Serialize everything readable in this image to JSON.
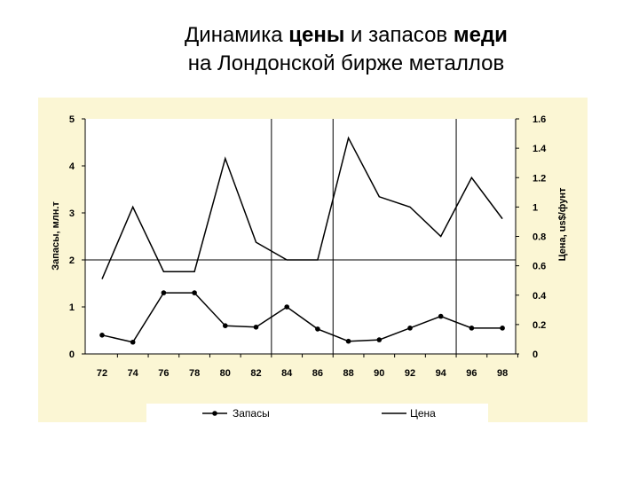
{
  "title": {
    "line1_a": "Динамика ",
    "line1_b": "цены",
    "line1_c": " и запасов ",
    "line1_d": "меди",
    "line2": "на Лондонской бирже металлов"
  },
  "chart_data": {
    "type": "line",
    "x": [
      "72",
      "74",
      "76",
      "78",
      "80",
      "82",
      "84",
      "86",
      "88",
      "90",
      "92",
      "94",
      "96",
      "98"
    ],
    "series": [
      {
        "name": "Запасы",
        "axis": "left",
        "marker": "circle",
        "values": [
          0.4,
          0.25,
          1.3,
          1.3,
          0.6,
          0.57,
          1.0,
          0.53,
          0.27,
          0.3,
          0.55,
          0.8,
          0.55,
          0.55
        ]
      },
      {
        "name": "Цена",
        "axis": "right",
        "marker": "none",
        "values": [
          0.51,
          1.0,
          0.56,
          0.56,
          1.33,
          0.76,
          0.64,
          0.64,
          1.47,
          1.07,
          1.0,
          0.8,
          1.2,
          0.92
        ]
      }
    ],
    "ylabel_left": "Запасы, млн.т",
    "ylabel_right": "Цена, us$/фунт",
    "yticks_left": [
      "0",
      "1",
      "2",
      "3",
      "4",
      "5"
    ],
    "yticks_right": [
      "0",
      "0.2",
      "0.4",
      "0.6",
      "0.8",
      "1",
      "1.2",
      "1.4",
      "1.6"
    ],
    "ylim_left": [
      0,
      5
    ],
    "ylim_right": [
      0,
      1.6
    ],
    "gridlines": {
      "horizontal_left": [
        2
      ],
      "vertical_x": [
        "82",
        "86",
        "94"
      ]
    },
    "legend_position": "bottom",
    "colors": {
      "series": "#000000",
      "background": "#fbf6d4",
      "plot": "#ffffff"
    }
  }
}
